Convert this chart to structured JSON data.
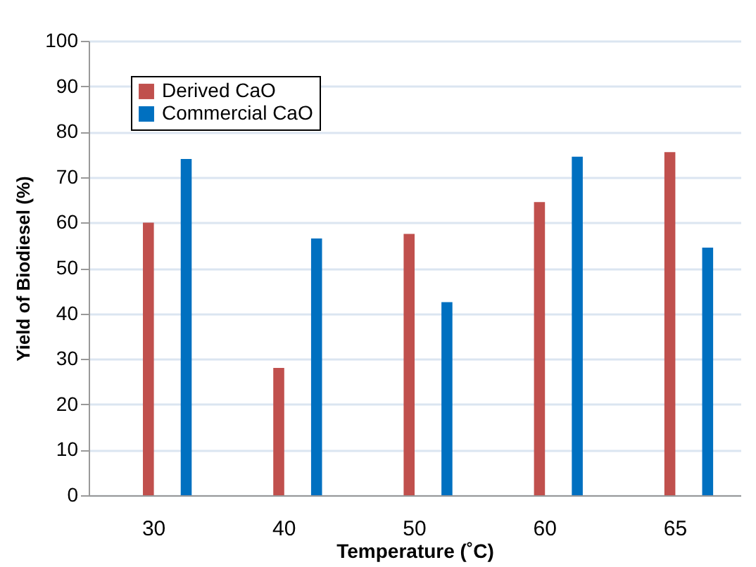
{
  "chart_data": {
    "type": "bar",
    "xlabel": "Temperature (˚C)",
    "ylabel": "Yield of Biodiesel (%)",
    "categories": [
      "30",
      "40",
      "50",
      "60",
      "65"
    ],
    "series": [
      {
        "name": "Derived CaO",
        "color": "#c0504d",
        "values": [
          60,
          28,
          57.5,
          64.5,
          75.5
        ]
      },
      {
        "name": "Commercial CaO",
        "color": "#0070c0",
        "values": [
          74,
          56.5,
          42.5,
          74.5,
          54.5
        ]
      }
    ],
    "ylim": [
      0,
      100
    ],
    "yticks": [
      0,
      10,
      20,
      30,
      40,
      50,
      60,
      70,
      80,
      90,
      100
    ],
    "grid": "y",
    "legend": "top left"
  }
}
